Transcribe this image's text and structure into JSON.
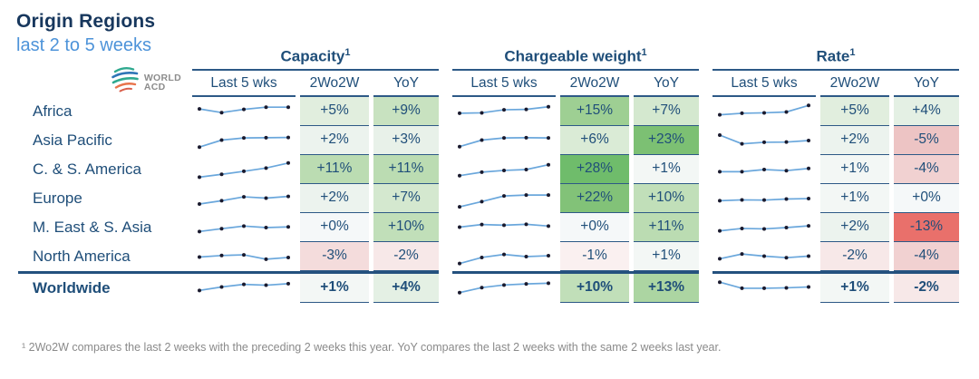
{
  "chart_data": {
    "type": "table",
    "title": "Origin Regions",
    "subtitle": "last 2 to 5 weeks",
    "logo": {
      "line1": "WORLD",
      "line2": "ACD"
    },
    "groups": [
      {
        "label": "Capacity",
        "sup": "1",
        "sub_columns": [
          "Last 5 wks",
          "2Wo2W",
          "YoY"
        ]
      },
      {
        "label": "Chargeable weight",
        "sup": "1",
        "sub_columns": [
          "Last 5 wks",
          "2Wo2W",
          "YoY"
        ]
      },
      {
        "label": "Rate",
        "sup": "1",
        "sub_columns": [
          "Last 5 wks",
          "2Wo2W",
          "YoY"
        ]
      }
    ],
    "rows": [
      {
        "region": "Africa",
        "total": false,
        "capacity": {
          "spark": [
            62,
            45,
            60,
            70,
            70
          ],
          "cells": [
            {
              "v": "+5%",
              "bg": "#E1EEDE"
            },
            {
              "v": "+9%",
              "bg": "#C8E2C0"
            }
          ]
        },
        "chargeable_weight": {
          "spark": [
            42,
            44,
            58,
            60,
            72
          ],
          "cells": [
            {
              "v": "+15%",
              "bg": "#9ECF93"
            },
            {
              "v": "+7%",
              "bg": "#D4E8CF"
            }
          ]
        },
        "rate": {
          "spark": [
            35,
            42,
            44,
            48,
            78
          ],
          "cells": [
            {
              "v": "+5%",
              "bg": "#E1EEDE"
            },
            {
              "v": "+4%",
              "bg": "#E4F0E4"
            }
          ]
        }
      },
      {
        "region": "Asia Pacific",
        "total": false,
        "capacity": {
          "spark": [
            20,
            52,
            62,
            63,
            64
          ],
          "cells": [
            {
              "v": "+2%",
              "bg": "#ECF3EE"
            },
            {
              "v": "+3%",
              "bg": "#E8F1E9"
            }
          ]
        },
        "chargeable_weight": {
          "spark": [
            22,
            52,
            62,
            63,
            62
          ],
          "cells": [
            {
              "v": "+6%",
              "bg": "#DAEBD6"
            },
            {
              "v": "+23%",
              "bg": "#7CC073"
            }
          ]
        },
        "rate": {
          "spark": [
            75,
            35,
            42,
            43,
            50
          ],
          "cells": [
            {
              "v": "+2%",
              "bg": "#ECF3EE"
            },
            {
              "v": "-5%",
              "bg": "#EDC4C4"
            }
          ]
        }
      },
      {
        "region": "C. & S. America",
        "total": false,
        "capacity": {
          "spark": [
            15,
            28,
            42,
            57,
            80
          ],
          "cells": [
            {
              "v": "+11%",
              "bg": "#BBDCB2"
            },
            {
              "v": "+11%",
              "bg": "#BBDCB2"
            }
          ]
        },
        "chargeable_weight": {
          "spark": [
            22,
            38,
            46,
            50,
            72
          ],
          "cells": [
            {
              "v": "+28%",
              "bg": "#6FBC6B"
            },
            {
              "v": "+1%",
              "bg": "#F3F7F5"
            }
          ]
        },
        "rate": {
          "spark": [
            40,
            40,
            50,
            45,
            55
          ],
          "cells": [
            {
              "v": "+1%",
              "bg": "#F3F7F5"
            },
            {
              "v": "-4%",
              "bg": "#F1D1D1"
            }
          ]
        }
      },
      {
        "region": "Europe",
        "total": false,
        "capacity": {
          "spark": [
            25,
            40,
            58,
            52,
            60
          ],
          "cells": [
            {
              "v": "+2%",
              "bg": "#ECF3EE"
            },
            {
              "v": "+7%",
              "bg": "#D4E8CF"
            }
          ]
        },
        "chargeable_weight": {
          "spark": [
            12,
            36,
            62,
            66,
            66
          ],
          "cells": [
            {
              "v": "+22%",
              "bg": "#82C278"
            },
            {
              "v": "+10%",
              "bg": "#C1DFB9"
            }
          ]
        },
        "rate": {
          "spark": [
            40,
            44,
            43,
            48,
            50
          ],
          "cells": [
            {
              "v": "+1%",
              "bg": "#F3F7F5"
            },
            {
              "v": "+0%",
              "bg": "#F5F8F9"
            }
          ]
        }
      },
      {
        "region": "M. East & S. Asia",
        "total": false,
        "capacity": {
          "spark": [
            32,
            45,
            57,
            50,
            53
          ],
          "cells": [
            {
              "v": "+0%",
              "bg": "#F5F8F9"
            },
            {
              "v": "+10%",
              "bg": "#C1DFB9"
            }
          ]
        },
        "chargeable_weight": {
          "spark": [
            52,
            64,
            61,
            65,
            57
          ],
          "cells": [
            {
              "v": "+0%",
              "bg": "#F5F8F9"
            },
            {
              "v": "+11%",
              "bg": "#BBDCB2"
            }
          ]
        },
        "rate": {
          "spark": [
            35,
            46,
            44,
            50,
            58
          ],
          "cells": [
            {
              "v": "+2%",
              "bg": "#ECF3EE"
            },
            {
              "v": "-13%",
              "bg": "#E9706B"
            }
          ]
        }
      },
      {
        "region": "North America",
        "total": false,
        "capacity": {
          "spark": [
            48,
            55,
            58,
            38,
            46
          ],
          "cells": [
            {
              "v": "-3%",
              "bg": "#F4DCDC"
            },
            {
              "v": "-2%",
              "bg": "#F7E8E8"
            }
          ]
        },
        "chargeable_weight": {
          "spark": [
            18,
            46,
            60,
            50,
            54
          ],
          "cells": [
            {
              "v": "-1%",
              "bg": "#FAF0F0"
            },
            {
              "v": "+1%",
              "bg": "#F3F7F5"
            }
          ]
        },
        "rate": {
          "spark": [
            40,
            62,
            52,
            45,
            52
          ],
          "cells": [
            {
              "v": "-2%",
              "bg": "#F7E8E8"
            },
            {
              "v": "-4%",
              "bg": "#F1D1D1"
            }
          ]
        }
      },
      {
        "region": "Worldwide",
        "total": true,
        "capacity": {
          "spark": [
            32,
            48,
            60,
            56,
            63
          ],
          "cells": [
            {
              "v": "+1%",
              "bg": "#F3F7F5"
            },
            {
              "v": "+4%",
              "bg": "#E4F0E4"
            }
          ]
        },
        "chargeable_weight": {
          "spark": [
            22,
            45,
            57,
            62,
            65
          ],
          "cells": [
            {
              "v": "+10%",
              "bg": "#C1DFB9"
            },
            {
              "v": "+13%",
              "bg": "#ACD5A2"
            }
          ]
        },
        "rate": {
          "spark": [
            70,
            42,
            42,
            44,
            48
          ],
          "cells": [
            {
              "v": "+1%",
              "bg": "#F3F7F5"
            },
            {
              "v": "-2%",
              "bg": "#F7E8E8"
            }
          ]
        }
      }
    ],
    "footnote": "¹ 2Wo2W compares the last 2 weeks with the preceding 2 weeks this year. YoY compares the last 2 weeks with the same 2 weeks last year.",
    "colors": {
      "title_navy": "#17375D",
      "subtitle_blue": "#4D93D9",
      "text_navy": "#1F4E79",
      "border_navy": "#2D5986",
      "spark_line": "#6AA7DC",
      "spark_dot": "#1A1A2E",
      "footnote_gray": "#8A8A8A"
    }
  }
}
